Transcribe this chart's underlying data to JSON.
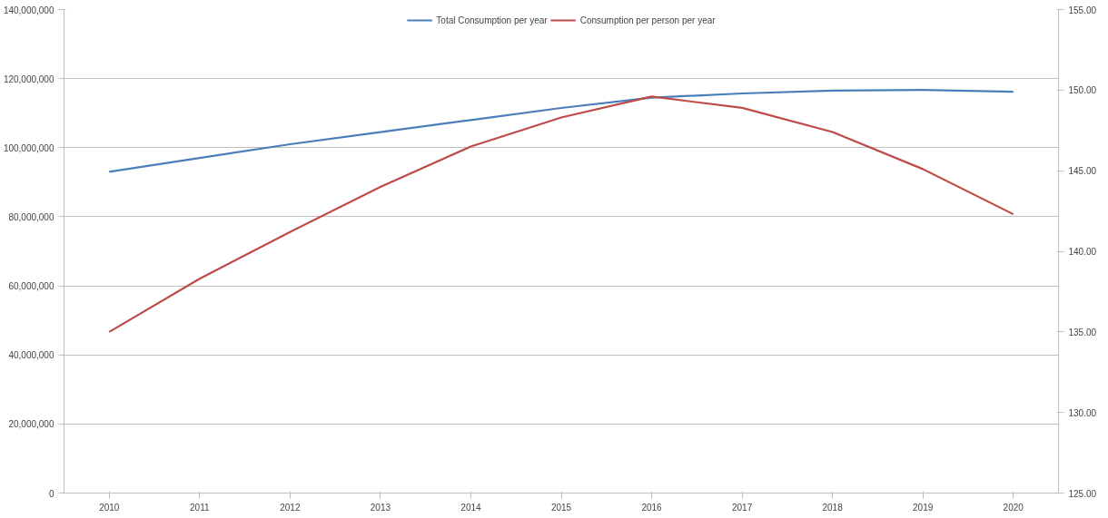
{
  "chart_data": {
    "type": "line",
    "categories": [
      "2010",
      "2011",
      "2012",
      "2013",
      "2014",
      "2015",
      "2016",
      "2017",
      "2018",
      "2019",
      "2020"
    ],
    "series": [
      {
        "name": "Total Consumption per year",
        "color": "#4a7ebb",
        "values": [
          93000000,
          97000000,
          101000000,
          104500000,
          108000000,
          111500000,
          114500000,
          115700000,
          116500000,
          116700000,
          116200000
        ]
      },
      {
        "name": "Consumption per person per year",
        "color": "#be4b48",
        "axis": "y2",
        "values": [
          135.0,
          138.3,
          141.2,
          144.0,
          146.5,
          148.3,
          149.6,
          148.9,
          147.4,
          145.1,
          142.3
        ]
      }
    ],
    "ylim": [
      0,
      140000000
    ],
    "yticks": [
      {
        "value": 0,
        "label": "0"
      },
      {
        "value": 20000000,
        "label": "20,000,000"
      },
      {
        "value": 40000000,
        "label": "40,000,000"
      },
      {
        "value": 60000000,
        "label": "60,000,000"
      },
      {
        "value": 80000000,
        "label": "80,000,000"
      },
      {
        "value": 100000000,
        "label": "100,000,000"
      },
      {
        "value": 120000000,
        "label": "120,000,000"
      },
      {
        "value": 140000000,
        "label": "140,000,000"
      }
    ],
    "y2lim": [
      125,
      155
    ],
    "y2ticks": [
      {
        "value": 125,
        "label": "125.00"
      },
      {
        "value": 130,
        "label": "130.00"
      },
      {
        "value": 135,
        "label": "135.00"
      },
      {
        "value": 140,
        "label": "140.00"
      },
      {
        "value": 145,
        "label": "145.00"
      },
      {
        "value": 150,
        "label": "150.00"
      },
      {
        "value": 155,
        "label": "155.00"
      }
    ],
    "grid": "y",
    "legend": "top",
    "marker": "none",
    "line_style": "solid"
  }
}
